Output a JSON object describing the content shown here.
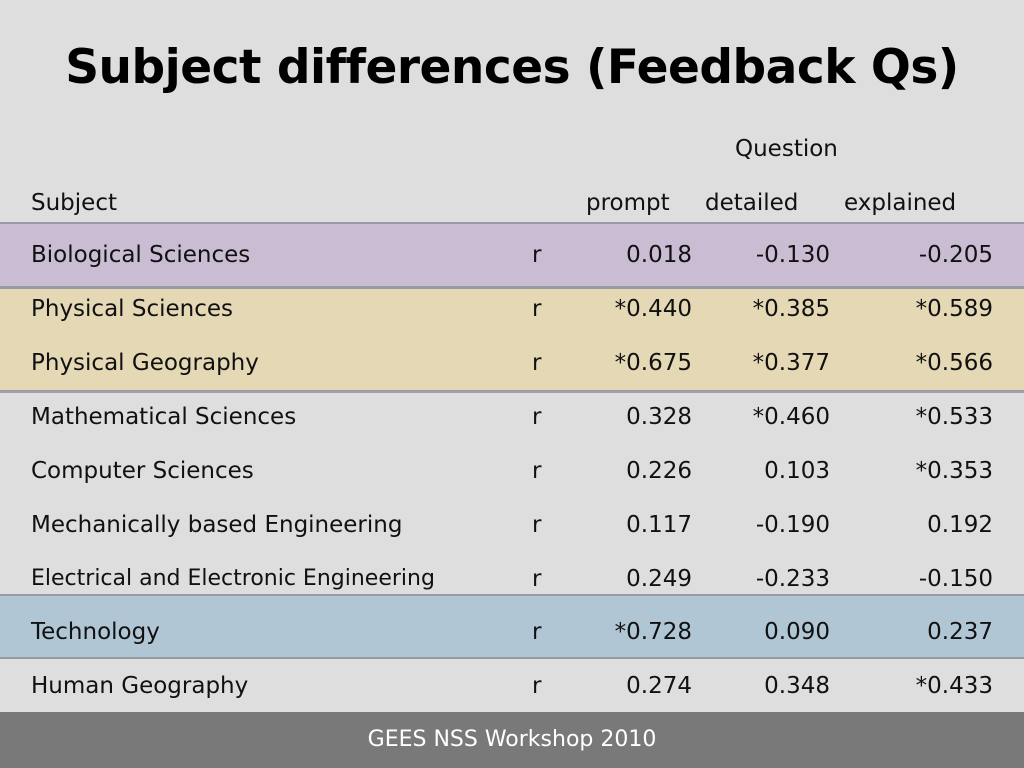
{
  "title": "Subject differences (Feedback Qs)",
  "header": {
    "question_label": "Question",
    "subject_label": "Subject",
    "col_prompt": "prompt",
    "col_detailed": "detailed",
    "col_explained": "explained"
  },
  "rows": [
    {
      "subject": "Biological Sciences",
      "stat": "r",
      "prompt": "0.018",
      "detailed": "-0.130",
      "explained": "-0.205"
    },
    {
      "subject": "Physical Sciences",
      "stat": "r",
      "prompt": "*0.440",
      "detailed": "*0.385",
      "explained": "*0.589"
    },
    {
      "subject": "Physical Geography",
      "stat": "r",
      "prompt": "*0.675",
      "detailed": "*0.377",
      "explained": "*0.566"
    },
    {
      "subject": "Mathematical Sciences",
      "stat": "r",
      "prompt": "0.328",
      "detailed": "*0.460",
      "explained": "*0.533"
    },
    {
      "subject": "Computer Sciences",
      "stat": "r",
      "prompt": "0.226",
      "detailed": "0.103",
      "explained": "*0.353"
    },
    {
      "subject": "Mechanically based Engineering",
      "stat": "r",
      "prompt": "0.117",
      "detailed": "-0.190",
      "explained": "0.192"
    },
    {
      "subject": "Electrical and Electronic Engineering",
      "stat": "r",
      "prompt": "0.249",
      "detailed": "-0.233",
      "explained": "-0.150"
    },
    {
      "subject": "Technology",
      "stat": "r",
      "prompt": "*0.728",
      "detailed": "0.090",
      "explained": "0.237"
    },
    {
      "subject": "Human Geography",
      "stat": "r",
      "prompt": "0.274",
      "detailed": "0.348",
      "explained": "*0.433"
    }
  ],
  "colors": {
    "background": "#dedede",
    "bio_band": "#c9bcd3",
    "physical_band": "#e4d8b5",
    "technology_band": "#b1c6d5",
    "footer": "#797979"
  },
  "footer_text": "GEES NSS Workshop 2010"
}
